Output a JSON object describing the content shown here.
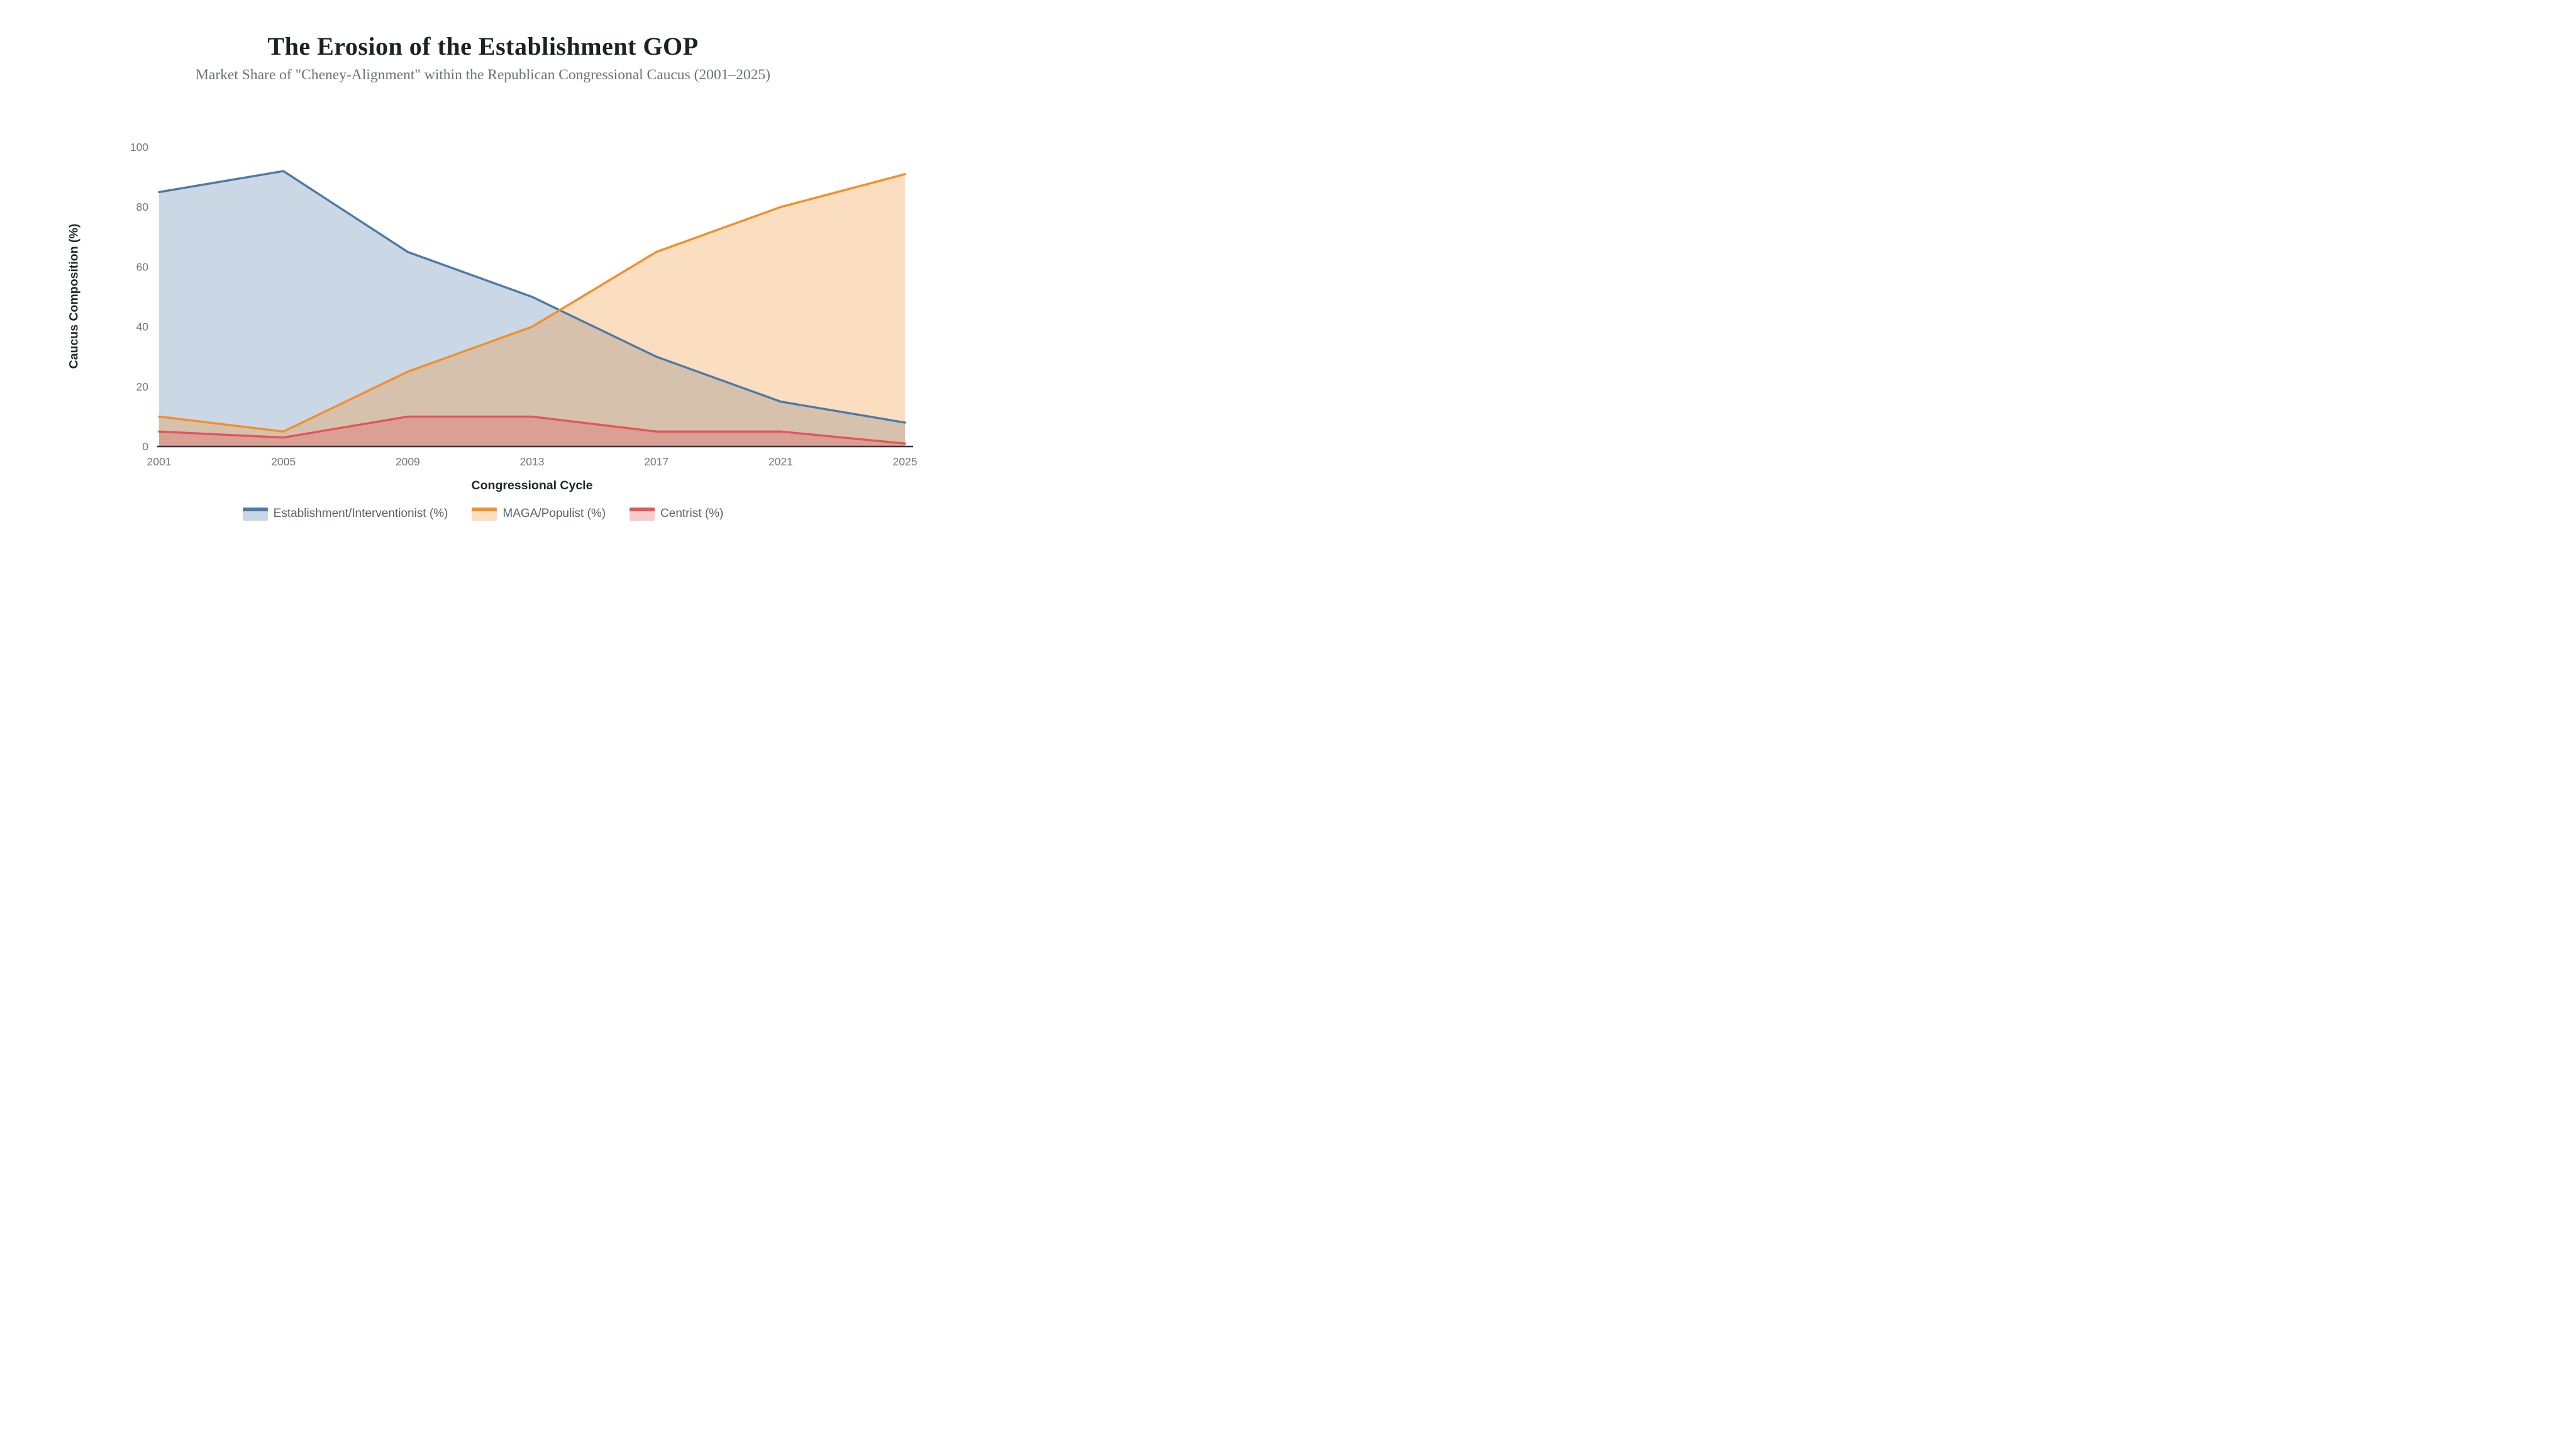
{
  "page": {
    "title": "The Erosion of the Establishment GOP",
    "subtitle": "Market Share of \"Cheney-Alignment\" within the Republican Congressional Caucus (2001–2025)"
  },
  "chart_data": {
    "type": "area",
    "x": [
      2001,
      2005,
      2009,
      2013,
      2017,
      2021,
      2025
    ],
    "series": [
      {
        "name": "Establishment/Interventionist (%)",
        "color": "#4e79a7",
        "values": [
          85,
          92,
          65,
          50,
          30,
          15,
          8
        ]
      },
      {
        "name": "MAGA/Populist (%)",
        "color": "#f28e2b",
        "values": [
          10,
          5,
          25,
          40,
          65,
          80,
          91
        ]
      },
      {
        "name": "Centrist (%)",
        "color": "#e15759",
        "values": [
          5,
          3,
          10,
          10,
          5,
          5,
          1
        ]
      }
    ],
    "title": "The Erosion of the Establishment GOP",
    "subtitle": "Market Share of \"Cheney-Alignment\" within the Republican Congressional Caucus (2001–2025)",
    "xlabel": "Congressional Cycle",
    "ylabel": "Caucus Composition (%)",
    "ylim": [
      0,
      100
    ],
    "y_ticks": [
      0,
      20,
      40,
      60,
      80,
      100
    ],
    "fill_opacity": 0.3,
    "line_width": 3.4,
    "grid": false,
    "legend_position": "bottom"
  },
  "style": {
    "axis_line_color": "#33373d",
    "tick_label_color": "#71767d",
    "background": "#ffffff"
  }
}
